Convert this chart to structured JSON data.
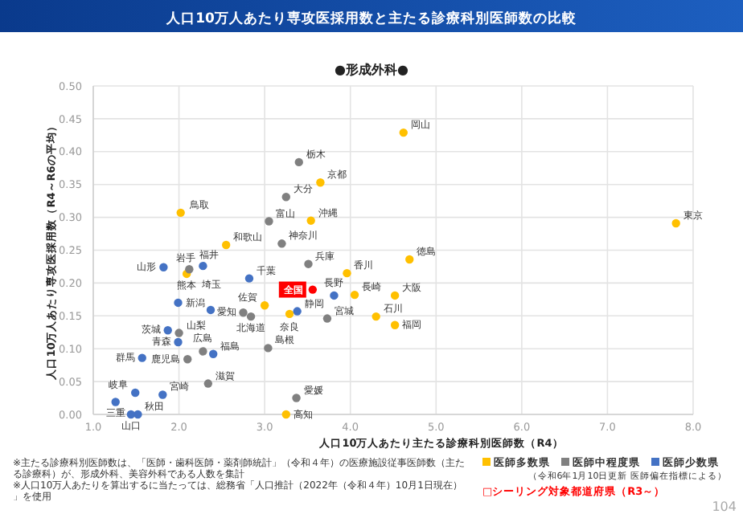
{
  "chart_data": {
    "type": "scatter",
    "title": "人口10万人あたり専攻医採用数と主たる診療科別医師数の比較",
    "subtitle": "●形成外科●",
    "xlabel": "人口10万人あたり主たる診療科別医師数（R4）",
    "ylabel": "人口10万人あたり専攻医採用数（R4～R6の平均）",
    "xlim": [
      1,
      8
    ],
    "xticks": [
      {
        "value": 1,
        "label": "1.0"
      },
      {
        "value": 2,
        "label": "2.0"
      },
      {
        "value": 3,
        "label": "3.0"
      },
      {
        "value": 4,
        "label": "4.0"
      },
      {
        "value": 5,
        "label": "5.0"
      },
      {
        "value": 6,
        "label": "6.0"
      },
      {
        "value": 7,
        "label": "7.0"
      },
      {
        "value": 8,
        "label": "8.0"
      }
    ],
    "ylim": [
      0,
      0.5
    ],
    "yticks": [
      {
        "value": 0,
        "label": "0.00"
      },
      {
        "value": 0.05,
        "label": "0.05"
      },
      {
        "value": 0.1,
        "label": "0.10"
      },
      {
        "value": 0.15,
        "label": "0.15"
      },
      {
        "value": 0.2,
        "label": "0.20"
      },
      {
        "value": 0.25,
        "label": "0.25"
      },
      {
        "value": 0.3,
        "label": "0.30"
      },
      {
        "value": 0.35,
        "label": "0.35"
      },
      {
        "value": 0.4,
        "label": "0.40"
      },
      {
        "value": 0.45,
        "label": "0.45"
      },
      {
        "value": 0.5,
        "label": "0.50"
      }
    ],
    "grid": true,
    "legend": "bottom right",
    "marker": "circle",
    "series": [
      {
        "name": "医師多数県",
        "color": "#ffc000",
        "x": [
          3.65,
          2.02,
          3.54,
          2.55,
          3.96,
          2.09,
          4.05,
          3.0,
          3.29,
          4.3,
          4.52,
          4.52,
          3.25,
          4.62,
          4.69,
          7.8
        ],
        "values": [
          0.353,
          0.307,
          0.295,
          0.258,
          0.215,
          0.214,
          0.182,
          0.166,
          0.153,
          0.149,
          0.181,
          0.136,
          0.0,
          0.429,
          0.236,
          0.291
        ]
      },
      {
        "name": "医師中程度県",
        "color": "#808080",
        "x": [
          3.4,
          3.25,
          3.05,
          3.2,
          2.12,
          3.51,
          2.75,
          2.84,
          3.73,
          2.0,
          2.28,
          3.04,
          2.1,
          2.34,
          3.37
        ],
        "values": [
          0.384,
          0.331,
          0.294,
          0.26,
          0.221,
          0.229,
          0.155,
          0.149,
          0.146,
          0.124,
          0.096,
          0.101,
          0.084,
          0.047,
          0.025
        ]
      },
      {
        "name": "医師少数県",
        "color": "#4472c4",
        "x": [
          1.82,
          2.28,
          2.82,
          3.81,
          1.99,
          2.37,
          3.38,
          1.87,
          1.99,
          2.4,
          1.57,
          1.49,
          1.81,
          1.26,
          1.44,
          1.52
        ],
        "values": [
          0.224,
          0.226,
          0.207,
          0.181,
          0.17,
          0.159,
          0.157,
          0.128,
          0.11,
          0.092,
          0.086,
          0.033,
          0.03,
          0.019,
          0.0,
          0.0
        ]
      },
      {
        "name": "全国",
        "color": "#ff0000",
        "x": [
          3.56
        ],
        "values": [
          0.19
        ]
      }
    ],
    "annotations": [
      {
        "text": "京都",
        "x": 3.65,
        "y": 0.353
      },
      {
        "text": "鳥取",
        "x": 2.02,
        "y": 0.307
      },
      {
        "text": "沖縄",
        "x": 3.54,
        "y": 0.295
      },
      {
        "text": "和歌山",
        "x": 2.55,
        "y": 0.258
      },
      {
        "text": "香川",
        "x": 3.96,
        "y": 0.215
      },
      {
        "text": "熊本",
        "x": 2.09,
        "y": 0.214
      },
      {
        "text": "長崎",
        "x": 4.05,
        "y": 0.182
      },
      {
        "text": "佐賀",
        "x": 3.0,
        "y": 0.166
      },
      {
        "text": "奈良",
        "x": 3.29,
        "y": 0.153
      },
      {
        "text": "石川",
        "x": 4.3,
        "y": 0.149
      },
      {
        "text": "大阪",
        "x": 4.52,
        "y": 0.181
      },
      {
        "text": "福岡",
        "x": 4.52,
        "y": 0.136
      },
      {
        "text": "高知",
        "x": 3.25,
        "y": 0.0
      },
      {
        "text": "岡山",
        "x": 4.62,
        "y": 0.429
      },
      {
        "text": "徳島",
        "x": 4.69,
        "y": 0.236
      },
      {
        "text": "東京",
        "x": 7.8,
        "y": 0.291
      },
      {
        "text": "栃木",
        "x": 3.4,
        "y": 0.384
      },
      {
        "text": "大分",
        "x": 3.25,
        "y": 0.331
      },
      {
        "text": "富山",
        "x": 3.05,
        "y": 0.294
      },
      {
        "text": "神奈川",
        "x": 3.2,
        "y": 0.26
      },
      {
        "text": "福井",
        "x": 2.12,
        "y": 0.221
      },
      {
        "text": "兵庫",
        "x": 3.51,
        "y": 0.229
      },
      {
        "text": "愛知",
        "x": 2.75,
        "y": 0.155
      },
      {
        "text": "北海道",
        "x": 2.84,
        "y": 0.149
      },
      {
        "text": "宮城",
        "x": 3.73,
        "y": 0.146
      },
      {
        "text": "山梨",
        "x": 2.0,
        "y": 0.124
      },
      {
        "text": "広島",
        "x": 2.28,
        "y": 0.096
      },
      {
        "text": "島根",
        "x": 3.04,
        "y": 0.101
      },
      {
        "text": "鹿児島",
        "x": 2.1,
        "y": 0.084
      },
      {
        "text": "滋賀",
        "x": 2.34,
        "y": 0.047
      },
      {
        "text": "愛媛",
        "x": 3.37,
        "y": 0.025
      },
      {
        "text": "山形",
        "x": 1.82,
        "y": 0.224
      },
      {
        "text": "岩手",
        "x": 2.28,
        "y": 0.226
      },
      {
        "text": "千葉",
        "x": 2.82,
        "y": 0.207
      },
      {
        "text": "長野",
        "x": 3.81,
        "y": 0.181
      },
      {
        "text": "新潟",
        "x": 1.99,
        "y": 0.17
      },
      {
        "text": "埼玉",
        "x": 2.37,
        "y": 0.159
      },
      {
        "text": "静岡",
        "x": 3.38,
        "y": 0.157
      },
      {
        "text": "茨城",
        "x": 1.87,
        "y": 0.128
      },
      {
        "text": "青森",
        "x": 1.99,
        "y": 0.11
      },
      {
        "text": "福島",
        "x": 2.4,
        "y": 0.092
      },
      {
        "text": "群馬",
        "x": 1.57,
        "y": 0.086
      },
      {
        "text": "岐阜",
        "x": 1.49,
        "y": 0.033
      },
      {
        "text": "宮崎",
        "x": 1.81,
        "y": 0.03
      },
      {
        "text": "三重",
        "x": 1.26,
        "y": 0.019
      },
      {
        "text": "山口",
        "x": 1.44,
        "y": 0.0
      },
      {
        "text": "秋田",
        "x": 1.52,
        "y": 0.0
      },
      "（令和6年1月10日更新 医師偏在指標による）",
      "□シーリング対象都道府県（R3～）",
      "※主たる診療科別医師数は、「医師・歯科医師・薬剤師統計」（令和４年）の医療施設従事医師数（主たる診療科）が、形成外科、美容外科である人数を集計",
      "※人口10万人あたりを算出するに当たっては、総務省「人口推計（2022年（令和４年）10月1日現在）」を使用",
      "104"
    ]
  }
}
